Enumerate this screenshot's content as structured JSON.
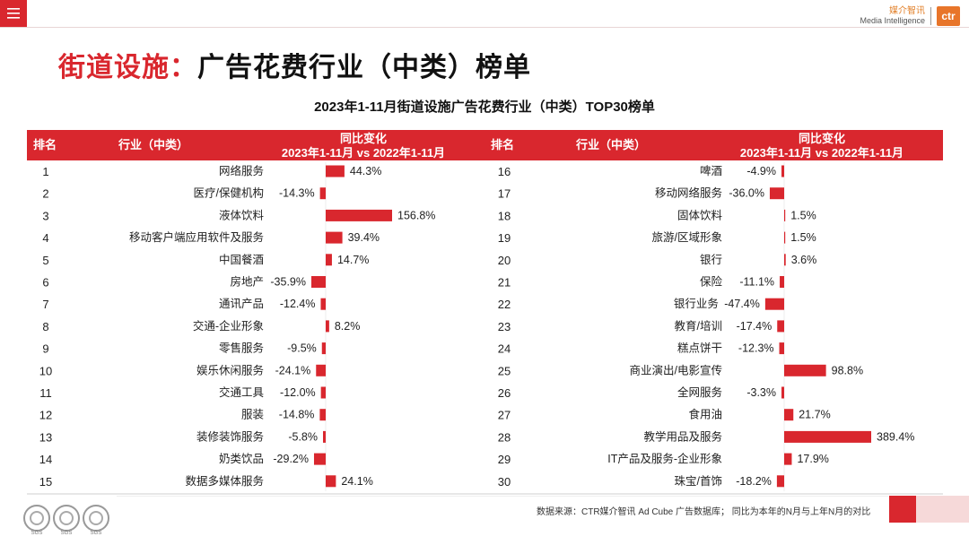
{
  "header": {
    "brand_cn": "媒介智讯",
    "brand_en": "Media Intelligence",
    "brand_logo": "ctr"
  },
  "page_title": {
    "accent": "街道设施：",
    "rest": "广告花费行业（中类）榜单"
  },
  "colors": {
    "accent": "#d9272e",
    "bar": "#d9272e"
  },
  "chart_data": {
    "type": "bar",
    "title": "2023年1-11月街道设施广告花费行业（中类）TOP30榜单",
    "columns": {
      "rank": "排名",
      "industry": "行业（中类）",
      "change_title": "同比变化",
      "change_subtitle": "2023年1-11月 vs 2022年1-11月"
    },
    "unit": "%",
    "rows": [
      {
        "rank": "1",
        "name": "网络服务",
        "value": 44.3,
        "label": "44.3%"
      },
      {
        "rank": "2",
        "name": "医疗/保健机构",
        "value": -14.3,
        "label": "-14.3%"
      },
      {
        "rank": "3",
        "name": "液体饮料",
        "value": 156.8,
        "label": "156.8%"
      },
      {
        "rank": "4",
        "name": "移动客户端应用软件及服务",
        "value": 39.4,
        "label": "39.4%"
      },
      {
        "rank": "5",
        "name": "中国餐酒",
        "value": 14.7,
        "label": "14.7%"
      },
      {
        "rank": "6",
        "name": "房地产",
        "value": -35.9,
        "label": "-35.9%"
      },
      {
        "rank": "7",
        "name": "通讯产品",
        "value": -12.4,
        "label": "-12.4%"
      },
      {
        "rank": "8",
        "name": "交通-企业形象",
        "value": 8.2,
        "label": "8.2%"
      },
      {
        "rank": "9",
        "name": "零售服务",
        "value": -9.5,
        "label": "-9.5%"
      },
      {
        "rank": "10",
        "name": "娱乐休闲服务",
        "value": -24.1,
        "label": "-24.1%"
      },
      {
        "rank": "11",
        "name": "交通工具",
        "value": -12.0,
        "label": "-12.0%"
      },
      {
        "rank": "12",
        "name": "服装",
        "value": -14.8,
        "label": "-14.8%"
      },
      {
        "rank": "13",
        "name": "装修装饰服务",
        "value": -5.8,
        "label": "-5.8%"
      },
      {
        "rank": "14",
        "name": "奶类饮品",
        "value": -29.2,
        "label": "-29.2%"
      },
      {
        "rank": "15",
        "name": "数据多媒体服务",
        "value": 24.1,
        "label": "24.1%"
      },
      {
        "rank": "16",
        "name": "啤酒",
        "value": -4.9,
        "label": "-4.9%"
      },
      {
        "rank": "17",
        "name": "移动网络服务",
        "value": -36.0,
        "label": "-36.0%"
      },
      {
        "rank": "18",
        "name": "固体饮料",
        "value": 1.5,
        "label": "1.5%"
      },
      {
        "rank": "19",
        "name": "旅游/区域形象",
        "value": 1.5,
        "label": "1.5%"
      },
      {
        "rank": "20",
        "name": "银行",
        "value": 3.6,
        "label": "3.6%"
      },
      {
        "rank": "21",
        "name": "保险",
        "value": -11.1,
        "label": "-11.1%"
      },
      {
        "rank": "22",
        "name": "银行业务",
        "value": -47.4,
        "label": "-47.4%"
      },
      {
        "rank": "23",
        "name": "教育/培训",
        "value": -17.4,
        "label": "-17.4%"
      },
      {
        "rank": "24",
        "name": "糕点饼干",
        "value": -12.3,
        "label": "-12.3%"
      },
      {
        "rank": "25",
        "name": "商业演出/电影宣传",
        "value": 98.8,
        "label": "98.8%"
      },
      {
        "rank": "26",
        "name": "全网服务",
        "value": -3.3,
        "label": "-3.3%"
      },
      {
        "rank": "27",
        "name": "食用油",
        "value": 21.7,
        "label": "21.7%"
      },
      {
        "rank": "28",
        "name": "教学用品及服务",
        "value": 389.4,
        "label": "389.4%"
      },
      {
        "rank": "29",
        "name": "IT产品及服务-企业形象",
        "value": 17.9,
        "label": "17.9%"
      },
      {
        "rank": "30",
        "name": "珠宝/首饰",
        "value": -18.2,
        "label": "-18.2%"
      }
    ]
  },
  "footer": {
    "source": "数据来源：CTR媒介智讯 Ad Cube 广告数据库；  同比为本年的N月与上年N月的对比",
    "badges": [
      "SGS",
      "SGS",
      "SGS"
    ]
  }
}
